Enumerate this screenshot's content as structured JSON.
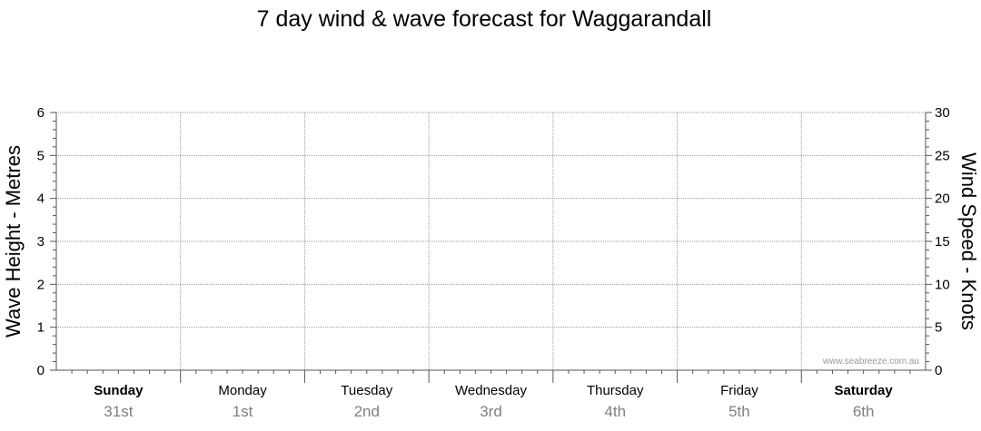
{
  "chart_data": {
    "type": "line",
    "title": "7 day wind & wave forecast for Waggarandall",
    "ylabel_left": "Wave Height - Metres",
    "ylabel_right": "Wind Speed - Knots",
    "ylim_left": [
      0,
      6
    ],
    "ylim_right": [
      0,
      30
    ],
    "left_ticks": [
      "0",
      "1",
      "2",
      "3",
      "4",
      "5",
      "6"
    ],
    "right_ticks": [
      "0",
      "5",
      "10",
      "15",
      "20",
      "25",
      "30"
    ],
    "days": [
      {
        "name": "Sunday",
        "date": "31st",
        "bold": true
      },
      {
        "name": "Monday",
        "date": "1st",
        "bold": false
      },
      {
        "name": "Tuesday",
        "date": "2nd",
        "bold": false
      },
      {
        "name": "Wednesday",
        "date": "3rd",
        "bold": false
      },
      {
        "name": "Thursday",
        "date": "4th",
        "bold": false
      },
      {
        "name": "Friday",
        "date": "5th",
        "bold": false
      },
      {
        "name": "Saturday",
        "date": "6th",
        "bold": true
      }
    ],
    "series": [],
    "grid": true,
    "watermark": "www.seabreeze.com.au",
    "colors": {
      "grid": "#999999",
      "axis": "#555555",
      "date_text": "#808080"
    }
  }
}
